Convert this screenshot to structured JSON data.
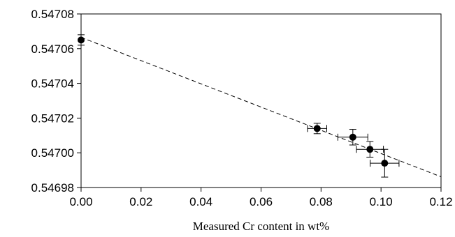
{
  "chart_data": {
    "type": "scatter",
    "title": "",
    "xlabel": "Measured Cr content in wt%",
    "ylabel": "",
    "xlim": [
      0,
      0.12
    ],
    "ylim": [
      0.54698,
      0.54708
    ],
    "x_ticks": [
      "0.00",
      "0.02",
      "0.04",
      "0.06",
      "0.08",
      "0.10",
      "0.12"
    ],
    "y_ticks": [
      "0.54698",
      "0.54700",
      "0.54702",
      "0.54704",
      "0.54706",
      "0.54708"
    ],
    "grid": false,
    "legend": "none",
    "marker_color": "#000000",
    "series": [
      {
        "points": [
          {
            "x": 0.0,
            "y": 0.547065,
            "xerr": 0.0,
            "yerr": 3e-06
          },
          {
            "x": 0.0787,
            "y": 0.547014,
            "xerr": 0.0032,
            "yerr": 3e-06
          },
          {
            "x": 0.0906,
            "y": 0.547009,
            "xerr": 0.005,
            "yerr": 4.5e-06
          },
          {
            "x": 0.0963,
            "y": 0.547002,
            "xerr": 0.0045,
            "yerr": 4.5e-06
          },
          {
            "x": 0.1012,
            "y": 0.546994,
            "xerr": 0.0048,
            "yerr": 8e-06
          }
        ]
      }
    ],
    "fit_line": {
      "style": "dashed",
      "x": [
        0.0,
        0.12
      ],
      "y": [
        0.5470665,
        0.5469862
      ]
    }
  }
}
